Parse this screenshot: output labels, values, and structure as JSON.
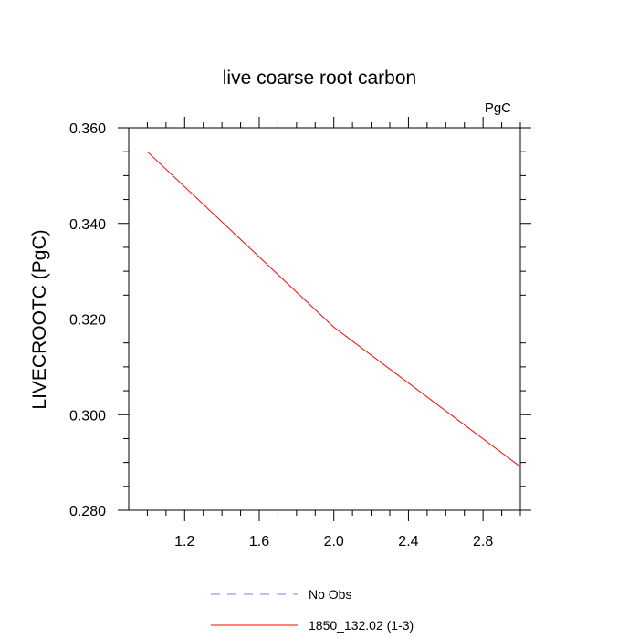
{
  "chart_data": {
    "type": "line",
    "title": "live coarse root carbon",
    "units_label": "PgC",
    "xlabel": "",
    "ylabel": "LIVECROOTC  (PgC)",
    "xlim": [
      0.9,
      3.0
    ],
    "ylim": [
      0.28,
      0.36
    ],
    "x_ticks": [
      1.2,
      1.6,
      2.0,
      2.4,
      2.8
    ],
    "x_tick_labels": [
      "1.2",
      "1.6",
      "2.0",
      "2.4",
      "2.8"
    ],
    "y_ticks": [
      0.28,
      0.3,
      0.32,
      0.34,
      0.36
    ],
    "y_tick_labels": [
      "0.280",
      "0.300",
      "0.320",
      "0.340",
      "0.360"
    ],
    "grid": false,
    "legend_position": "bottom",
    "series": [
      {
        "name": "No Obs",
        "color": "#8080ff",
        "dash": "dashed",
        "x": [],
        "y": []
      },
      {
        "name": "1850_132.02 (1-3)",
        "color": "#ff0000",
        "dash": "solid",
        "x": [
          1.0,
          2.0,
          3.0
        ],
        "y": [
          0.355,
          0.3183,
          0.2891
        ]
      }
    ]
  }
}
